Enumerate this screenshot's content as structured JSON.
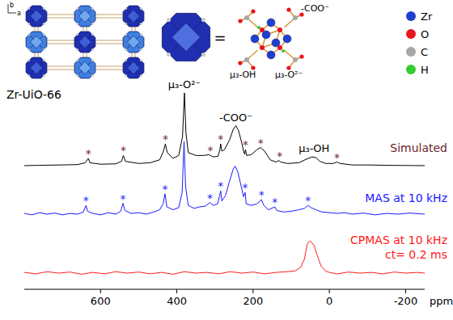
{
  "chart_data": {
    "type": "line",
    "title": "Zr-UiO-66",
    "x_label": "ppm",
    "xlim": [
      800,
      -250
    ],
    "xticks": [
      600,
      400,
      200,
      0,
      -200
    ],
    "ylim": [
      -5,
      100
    ],
    "tick_labels": "x",
    "sideband_symbol": "*",
    "annotations": [
      {
        "text": "μ₃-O²⁻",
        "x": 380
      },
      {
        "text": "-COO⁻",
        "x": 245
      },
      {
        "text": "μ₃-OH",
        "x": 40
      }
    ],
    "series": [
      {
        "name": "Simulated",
        "color": "#000000",
        "x": [
          800,
          760,
          700,
          660,
          640,
          632,
          628,
          600,
          560,
          545,
          540,
          535,
          500,
          470,
          445,
          435,
          430,
          425,
          410,
          395,
          385,
          380,
          376,
          370,
          350,
          330,
          315,
          305,
          292,
          287,
          285,
          282,
          275,
          262,
          252,
          245,
          238,
          230,
          224,
          222,
          220,
          217,
          205,
          190,
          180,
          170,
          155,
          140,
          132,
          128,
          110,
          80,
          60,
          45,
          35,
          25,
          10,
          -10,
          -20,
          -28,
          -60,
          -100,
          -150,
          -250
        ],
        "values": [
          0,
          0.5,
          1,
          1.5,
          4,
          10,
          4,
          2,
          2.5,
          6,
          14,
          6,
          3,
          4,
          8,
          20,
          30,
          18,
          10,
          14,
          40,
          100,
          45,
          18,
          14,
          14,
          15,
          12,
          13,
          22,
          30,
          20,
          22,
          35,
          50,
          55,
          48,
          32,
          18,
          16,
          22,
          14,
          15,
          22,
          25,
          20,
          8,
          5,
          7,
          5,
          3,
          4,
          9,
          12,
          11,
          6,
          3,
          3,
          5,
          3,
          1,
          1,
          0.5,
          0
        ],
        "sidebands": [
          632,
          540,
          430,
          312,
          285,
          220,
          180,
          130,
          -20
        ]
      },
      {
        "name": "MAS at 10 kHz",
        "color": "#1a1aff",
        "x": [
          800,
          780,
          760,
          740,
          720,
          700,
          680,
          660,
          645,
          638,
          634,
          620,
          600,
          580,
          560,
          547,
          541,
          536,
          520,
          500,
          480,
          460,
          445,
          436,
          431,
          426,
          410,
          395,
          386,
          381,
          377,
          370,
          355,
          340,
          325,
          313,
          305,
          293,
          288,
          285,
          282,
          272,
          262,
          252,
          247,
          240,
          232,
          225,
          221,
          218,
          205,
          190,
          178,
          172,
          160,
          143,
          138,
          120,
          100,
          80,
          65,
          56,
          48,
          35,
          20,
          0,
          -20,
          -40,
          -60,
          -90,
          -120,
          -150,
          -180,
          -210,
          -250
        ],
        "values": [
          1,
          -1,
          2,
          0,
          1.5,
          -1,
          1,
          0,
          3,
          12,
          4,
          1,
          -1,
          2,
          0,
          4,
          15,
          5,
          1,
          2,
          0,
          3,
          6,
          14,
          28,
          10,
          6,
          9,
          30,
          100,
          38,
          12,
          8,
          10,
          11,
          16,
          12,
          14,
          25,
          32,
          18,
          26,
          45,
          62,
          66,
          58,
          40,
          24,
          30,
          14,
          12,
          14,
          20,
          12,
          6,
          10,
          5,
          3,
          4,
          6,
          8,
          12,
          9,
          6,
          3,
          2,
          1,
          2,
          0,
          1.5,
          -1,
          1,
          0,
          1.5,
          0
        ],
        "sidebands": [
          638,
          541,
          431,
          313,
          285,
          221,
          178,
          143,
          56
        ]
      },
      {
        "name": "CPMAS at 10 kHz",
        "color": "#ff1a1a",
        "condition": "ct= 0.2 ms",
        "x": [
          800,
          770,
          740,
          710,
          680,
          650,
          620,
          590,
          560,
          530,
          500,
          470,
          440,
          410,
          380,
          350,
          320,
          290,
          260,
          230,
          200,
          170,
          140,
          110,
          90,
          75,
          65,
          58,
          52,
          46,
          40,
          32,
          22,
          10,
          0,
          -20,
          -50,
          -80,
          -110,
          -140,
          -170,
          -200,
          -230,
          -250
        ],
        "values": [
          1,
          -1,
          2,
          0,
          1.5,
          -1.5,
          1,
          -1,
          2,
          0,
          1.5,
          -1,
          1,
          -1.5,
          2,
          0,
          1,
          -1,
          2,
          0,
          1.5,
          -1,
          1,
          2,
          3,
          8,
          20,
          40,
          44,
          42,
          38,
          25,
          10,
          3,
          1,
          -1,
          1.5,
          0,
          1,
          -1,
          1.5,
          0,
          1,
          0
        ],
        "sidebands": []
      }
    ]
  },
  "structure": {
    "axes": [
      "b",
      "a"
    ],
    "equals": "=",
    "cluster_labels": [
      "-COO⁻",
      "μ₃-OH",
      "μ₃-O²⁻"
    ],
    "legend": [
      {
        "label": "Zr",
        "color": "#1f3fcf"
      },
      {
        "label": "O",
        "color": "#e8141e"
      },
      {
        "label": "C",
        "color": "#a6a6a6"
      },
      {
        "label": "H",
        "color": "#33cc33"
      }
    ]
  }
}
